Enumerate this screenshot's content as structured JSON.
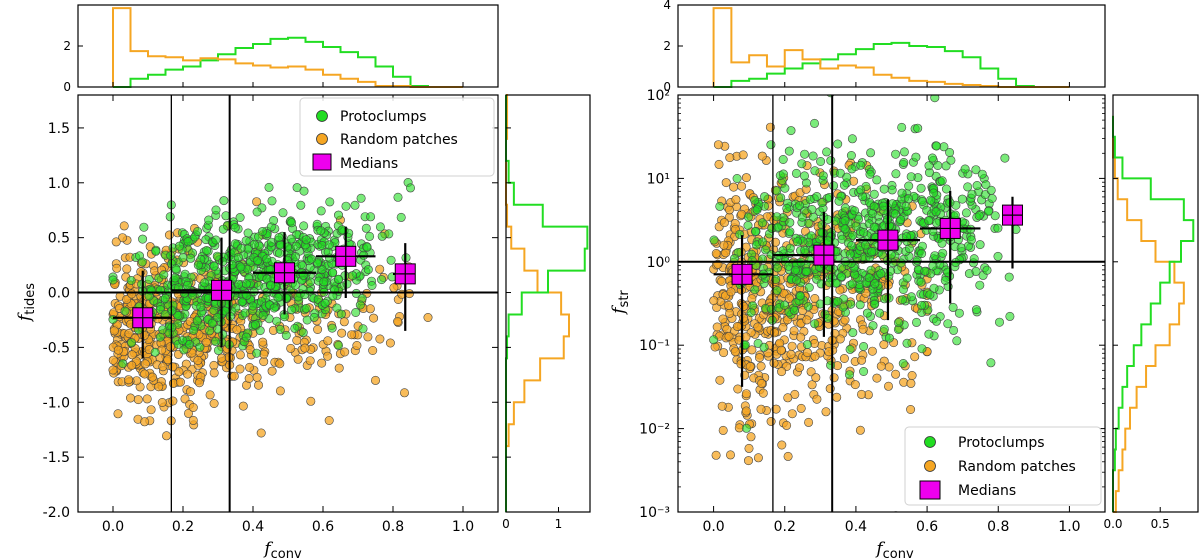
{
  "colors": {
    "protoclumps": "#22dd22",
    "random": "#f5a623",
    "medians": "#ee00ee",
    "line": "#000000"
  },
  "chart_data": [
    {
      "id": "left",
      "type": "scatter",
      "xlabel": "f",
      "xlabel_sub": "conv",
      "ylabel": "f",
      "ylabel_sub": "tides",
      "xlim": [
        -0.1,
        1.1
      ],
      "ylim": [
        -2.0,
        1.8
      ],
      "yscale": "linear",
      "xticks": [
        "0.0",
        "0.2",
        "0.4",
        "0.6",
        "0.8",
        "1.0"
      ],
      "xtick_values": [
        0.0,
        0.2,
        0.4,
        0.6,
        0.8,
        1.0
      ],
      "yticks": [
        "-2.0",
        "-1.5",
        "-1.0",
        "-0.5",
        "0.0",
        "0.5",
        "1.0",
        "1.5"
      ],
      "ytick_values": [
        -2.0,
        -1.5,
        -1.0,
        -0.5,
        0.0,
        0.5,
        1.0,
        1.5
      ],
      "vlines": [
        0.1667,
        0.3333
      ],
      "hline": 0.0,
      "legend": [
        "Protoclumps",
        "Random patches",
        "Medians"
      ],
      "legend_position": "top-right",
      "medians": [
        {
          "x": 0.085,
          "y": -0.23,
          "xlo": 0.0,
          "xhi": 0.167,
          "ylo": -0.6,
          "yhi": 0.2
        },
        {
          "x": 0.31,
          "y": 0.02,
          "xlo": 0.167,
          "xhi": 0.333,
          "ylo": -0.5,
          "yhi": 0.5
        },
        {
          "x": 0.49,
          "y": 0.18,
          "xlo": 0.4,
          "xhi": 0.58,
          "ylo": -0.2,
          "yhi": 0.55
        },
        {
          "x": 0.665,
          "y": 0.33,
          "xlo": 0.58,
          "xhi": 0.75,
          "ylo": -0.05,
          "yhi": 0.6
        },
        {
          "x": 0.835,
          "y": 0.17,
          "xlo": 0.8,
          "xhi": 0.85,
          "ylo": -0.35,
          "yhi": 0.45
        }
      ],
      "protoclumps_stats": {
        "xmin": 0.0,
        "xmax": 0.85,
        "y_center_at_0": -0.1,
        "y_center_at_max": 0.4,
        "spread": 0.28
      },
      "random_stats": {
        "xmin": 0.0,
        "xmax": 0.9,
        "y_center": -0.35,
        "spread": 0.35
      },
      "top_hist": {
        "ylim": [
          0,
          4
        ],
        "yticks": [
          "0",
          "2"
        ],
        "ytick_values": [
          0,
          2
        ],
        "bins": [
          0.0,
          0.05,
          0.1,
          0.15,
          0.2,
          0.25,
          0.3,
          0.35,
          0.4,
          0.45,
          0.5,
          0.55,
          0.6,
          0.65,
          0.7,
          0.75,
          0.8,
          0.85,
          0.9,
          0.95,
          1.0
        ],
        "protoclumps": [
          0.0,
          0.4,
          0.6,
          0.85,
          1.0,
          1.3,
          1.6,
          1.9,
          2.1,
          2.35,
          2.4,
          2.2,
          1.95,
          1.7,
          1.45,
          1.0,
          0.5,
          0.05,
          0.0,
          0.0
        ],
        "random": [
          3.85,
          1.75,
          1.5,
          1.45,
          1.3,
          1.4,
          1.35,
          1.15,
          1.05,
          0.95,
          1.0,
          0.85,
          0.6,
          0.4,
          0.25,
          0.05,
          0.05,
          0.0,
          0.0,
          0.0
        ]
      },
      "side_hist": {
        "xlim": [
          0,
          1.6
        ],
        "xticks": [
          "0",
          "1"
        ],
        "xtick_values": [
          0,
          1
        ],
        "bins": [
          -2.0,
          -1.8,
          -1.6,
          -1.4,
          -1.2,
          -1.0,
          -0.8,
          -0.6,
          -0.4,
          -0.2,
          0.0,
          0.2,
          0.4,
          0.6,
          0.8,
          1.0,
          1.2,
          1.4,
          1.6,
          1.8
        ],
        "protoclumps": [
          0.0,
          0.0,
          0.0,
          0.0,
          0.0,
          0.0,
          0.0,
          0.02,
          0.05,
          0.3,
          0.8,
          1.5,
          1.55,
          0.7,
          0.15,
          0.05,
          0.0,
          0.0,
          0.0
        ],
        "random": [
          0.0,
          0.0,
          0.0,
          0.05,
          0.15,
          0.35,
          0.65,
          1.1,
          1.2,
          1.05,
          0.6,
          0.35,
          0.1,
          0.02,
          0.0,
          0.0,
          0.0,
          0.02,
          0.02
        ]
      }
    },
    {
      "id": "right",
      "type": "scatter",
      "xlabel": "f",
      "xlabel_sub": "conv",
      "ylabel": "f",
      "ylabel_sub": "str",
      "xlim": [
        -0.1,
        1.1
      ],
      "ylim_log10": [
        -3,
        2
      ],
      "yscale": "log",
      "xticks": [
        "0.0",
        "0.2",
        "0.4",
        "0.6",
        "0.8",
        "1.0"
      ],
      "xtick_values": [
        0.0,
        0.2,
        0.4,
        0.6,
        0.8,
        1.0
      ],
      "yticks": [
        "10⁻³",
        "10⁻²",
        "10⁻¹",
        "10⁰",
        "10¹",
        "10²"
      ],
      "ytick_log10": [
        -3,
        -2,
        -1,
        0,
        1,
        2
      ],
      "vlines": [
        0.1667,
        0.3333
      ],
      "hline_log10": 0,
      "legend": [
        "Protoclumps",
        "Random patches",
        "Medians"
      ],
      "legend_position": "bottom-right",
      "medians": [
        {
          "x": 0.08,
          "ylog": -0.15,
          "xlo": 0.0,
          "xhi": 0.167,
          "ylolog": -1.5,
          "yhilog": 0.32
        },
        {
          "x": 0.31,
          "ylog": 0.08,
          "xlo": 0.167,
          "xhi": 0.333,
          "ylolog": -0.9,
          "yhilog": 0.6
        },
        {
          "x": 0.49,
          "ylog": 0.26,
          "xlo": 0.4,
          "xhi": 0.58,
          "ylolog": -0.7,
          "yhilog": 0.75
        },
        {
          "x": 0.665,
          "ylog": 0.4,
          "xlo": 0.58,
          "xhi": 0.75,
          "ylolog": -0.5,
          "yhilog": 0.85
        },
        {
          "x": 0.84,
          "ylog": 0.56,
          "xlo": 0.84,
          "xhi": 0.84,
          "ylolog": -0.08,
          "yhilog": 0.78
        }
      ],
      "protoclumps_stats": {
        "xmin": 0.0,
        "xmax": 0.85,
        "ylog_center": 0.25,
        "spread": 0.55
      },
      "random_stats": {
        "xmin": 0.0,
        "xmax": 0.6,
        "ylog_center": -0.4,
        "spread": 0.75
      },
      "top_hist": {
        "ylim": [
          0,
          4
        ],
        "yticks": [
          "0",
          "2",
          "4"
        ],
        "ytick_values": [
          0,
          2,
          4
        ],
        "bins": [
          0.0,
          0.05,
          0.1,
          0.15,
          0.2,
          0.25,
          0.3,
          0.35,
          0.4,
          0.45,
          0.5,
          0.55,
          0.6,
          0.65,
          0.7,
          0.75,
          0.8,
          0.85,
          0.9,
          0.95,
          1.0
        ],
        "protoclumps": [
          0.0,
          0.3,
          0.4,
          0.65,
          0.9,
          1.15,
          1.35,
          1.6,
          1.85,
          2.1,
          2.15,
          2.0,
          1.95,
          1.75,
          1.45,
          0.9,
          0.4,
          0.05,
          0.0,
          0.0
        ],
        "random": [
          3.85,
          1.2,
          1.55,
          1.0,
          1.8,
          1.35,
          0.9,
          1.05,
          0.95,
          0.6,
          0.45,
          0.3,
          0.25,
          0.15,
          0.1,
          0.05,
          0.0,
          0.0,
          0.0,
          0.0
        ]
      },
      "side_hist": {
        "xlim": [
          0,
          0.9
        ],
        "xticks": [
          "0.0",
          "0.5"
        ],
        "xtick_values": [
          0.0,
          0.5
        ],
        "bins_log10": [
          -3.0,
          -2.75,
          -2.5,
          -2.25,
          -2.0,
          -1.75,
          -1.5,
          -1.25,
          -1.0,
          -0.75,
          -0.5,
          -0.25,
          0.0,
          0.25,
          0.5,
          0.75,
          1.0,
          1.25,
          1.5,
          1.75
        ],
        "protoclumps": [
          0.0,
          0.0,
          0.02,
          0.03,
          0.06,
          0.1,
          0.15,
          0.22,
          0.3,
          0.4,
          0.5,
          0.6,
          0.72,
          0.85,
          0.75,
          0.4,
          0.1,
          0.02,
          0.0
        ],
        "random": [
          0.03,
          0.06,
          0.1,
          0.13,
          0.18,
          0.25,
          0.35,
          0.45,
          0.6,
          0.7,
          0.75,
          0.65,
          0.45,
          0.3,
          0.15,
          0.05,
          0.02,
          0.0,
          0.0
        ]
      }
    }
  ]
}
